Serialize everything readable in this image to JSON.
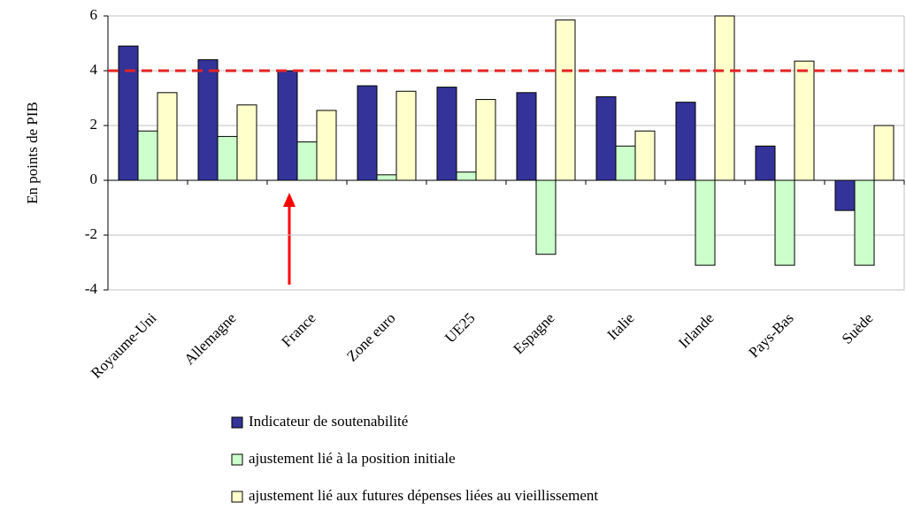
{
  "chart_data": {
    "type": "bar",
    "y_axis_label": "En points de PIB",
    "categories": [
      "Royaume-Uni",
      "Allemagne",
      "France",
      "Zone euro",
      "UE25",
      "Espagne",
      "Italie",
      "Irlande",
      "Pays-Bas",
      "Suède"
    ],
    "series": [
      {
        "name": "Indicateur de soutenabilité",
        "color": "#333399",
        "values": [
          4.9,
          4.4,
          4.0,
          3.45,
          3.4,
          3.2,
          3.05,
          2.85,
          1.25,
          -1.1
        ]
      },
      {
        "name": "ajustement lié à la position initiale",
        "color": "#ccffcc",
        "values": [
          1.8,
          1.6,
          1.4,
          0.2,
          0.3,
          -2.7,
          1.25,
          -3.1,
          -3.1,
          -3.1
        ]
      },
      {
        "name": "ajustement lié aux futures dépenses liées au vieillissement",
        "color": "#ffffcc",
        "values": [
          3.2,
          2.75,
          2.55,
          3.25,
          2.95,
          5.85,
          1.8,
          6.0,
          4.35,
          2.0
        ]
      }
    ],
    "ylim": [
      -4,
      6
    ],
    "yticks": [
      -4,
      -2,
      0,
      2,
      4,
      6
    ],
    "grid": true,
    "reference_line": {
      "value": 4,
      "color": "#e52222"
    }
  }
}
